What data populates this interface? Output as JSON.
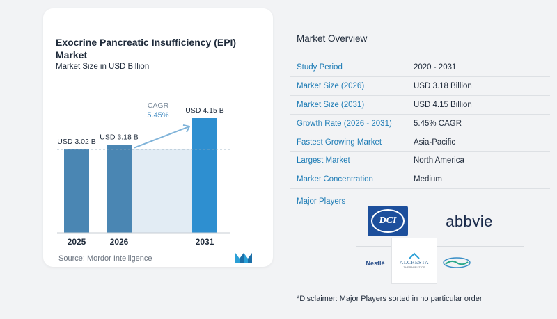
{
  "chart_data": {
    "type": "bar",
    "title": "Exocrine Pancreatic Insufficiency (EPI) Market",
    "subtitle": "Market Size in USD Billion",
    "categories": [
      "2025",
      "2026",
      "2031"
    ],
    "values": [
      3.02,
      3.18,
      4.15
    ],
    "data_labels": [
      "USD 3.02 B",
      "USD 3.18 B",
      "USD 4.15 B"
    ],
    "cagr_label": "CAGR",
    "cagr_value": "5.45%",
    "bar_color": "#4a86b3",
    "highlight_bar_color": "#2e8fd0",
    "band_color": "#e2ecf4",
    "xlabel": "",
    "ylabel": ""
  },
  "source": "Source:  Mordor Intelligence",
  "overview": {
    "title": "Market Overview",
    "rows": [
      {
        "key": "Study Period",
        "value": "2020 - 2031"
      },
      {
        "key": "Market Size (2026)",
        "value": "USD 3.18 Billion"
      },
      {
        "key": "Market Size (2031)",
        "value": "USD 4.15 Billion"
      },
      {
        "key": "Growth Rate (2026 - 2031)",
        "value": "5.45% CAGR"
      },
      {
        "key": "Fastest Growing Market",
        "value": "Asia-Pacific"
      },
      {
        "key": "Largest Market",
        "value": "North America"
      },
      {
        "key": "Market Concentration",
        "value": "Medium"
      }
    ],
    "players_title": "Major Players",
    "players": {
      "dci": "DCI",
      "abbvie": "abbvie",
      "nestle": "Nestlé",
      "alcresta": "ALCRESTA",
      "alcresta_sub": "THERAPEUTICS",
      "fifth": "First Wave"
    },
    "disclaimer": "*Disclaimer: Major Players sorted in no particular order"
  },
  "colors": {
    "accent": "#1c7bb5",
    "dci_blue": "#1d4f9c"
  }
}
